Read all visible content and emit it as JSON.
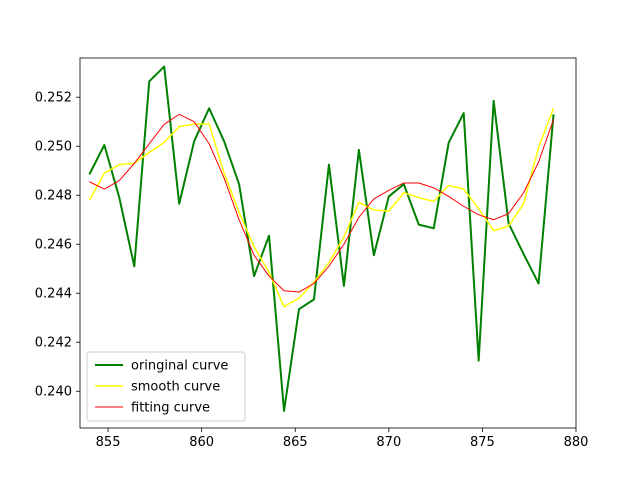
{
  "chart_data": {
    "type": "line",
    "title": "",
    "xlabel": "",
    "ylabel": "",
    "xlim": [
      853.5,
      880
    ],
    "ylim": [
      0.2385,
      0.2536
    ],
    "xticks": [
      855,
      860,
      865,
      870,
      875,
      880
    ],
    "xtick_labels": [
      "855",
      "860",
      "865",
      "870",
      "875",
      "880"
    ],
    "yticks": [
      0.24,
      0.242,
      0.244,
      0.246,
      0.248,
      0.25,
      0.252
    ],
    "ytick_labels": [
      "0.240",
      "0.242",
      "0.244",
      "0.246",
      "0.248",
      "0.250",
      "0.252"
    ],
    "grid": false,
    "legend": "lower-left",
    "x": [
      854.0,
      854.8,
      855.6,
      856.4,
      857.2,
      858.0,
      858.8,
      859.6,
      860.4,
      861.2,
      862.0,
      862.8,
      863.6,
      864.4,
      865.2,
      866.0,
      866.8,
      867.6,
      868.4,
      869.2,
      870.0,
      870.8,
      871.6,
      872.4,
      873.2,
      874.0,
      874.8,
      875.6,
      876.4,
      877.2,
      878.0,
      878.8
    ],
    "series": [
      {
        "name": "oringinal curve",
        "color": "#008000",
        "linewidth": 2,
        "values": [
          0.24885,
          0.25005,
          0.2479,
          0.2451,
          0.25265,
          0.25325,
          0.24765,
          0.2502,
          0.25155,
          0.2502,
          0.24845,
          0.2447,
          0.24635,
          0.2392,
          0.24335,
          0.24375,
          0.24925,
          0.2443,
          0.24985,
          0.24555,
          0.24795,
          0.24845,
          0.2468,
          0.24665,
          0.25015,
          0.25135,
          0.24125,
          0.25185,
          0.24685,
          0.2456,
          0.2444,
          0.2513
        ]
      },
      {
        "name": "smooth curve",
        "color": "#ffff00",
        "linewidth": 1.5,
        "values": [
          0.2478,
          0.2489,
          0.24925,
          0.2493,
          0.24975,
          0.25015,
          0.2508,
          0.2509,
          0.2509,
          0.2489,
          0.2473,
          0.2459,
          0.24485,
          0.24345,
          0.2438,
          0.24445,
          0.24525,
          0.2463,
          0.2477,
          0.2474,
          0.24735,
          0.2481,
          0.2479,
          0.24775,
          0.2484,
          0.24825,
          0.24745,
          0.24655,
          0.24675,
          0.24765,
          0.24995,
          0.25155
        ]
      },
      {
        "name": "fitting curve",
        "color": "#ff0000",
        "linewidth": 1,
        "values": [
          0.24855,
          0.24825,
          0.2486,
          0.2493,
          0.2501,
          0.2509,
          0.2513,
          0.251,
          0.2501,
          0.2487,
          0.247,
          0.24555,
          0.2447,
          0.2441,
          0.24405,
          0.2444,
          0.2451,
          0.246,
          0.2471,
          0.24785,
          0.2482,
          0.2485,
          0.2485,
          0.2483,
          0.24795,
          0.24755,
          0.2472,
          0.247,
          0.24725,
          0.2481,
          0.24935,
          0.2511
        ]
      }
    ]
  }
}
